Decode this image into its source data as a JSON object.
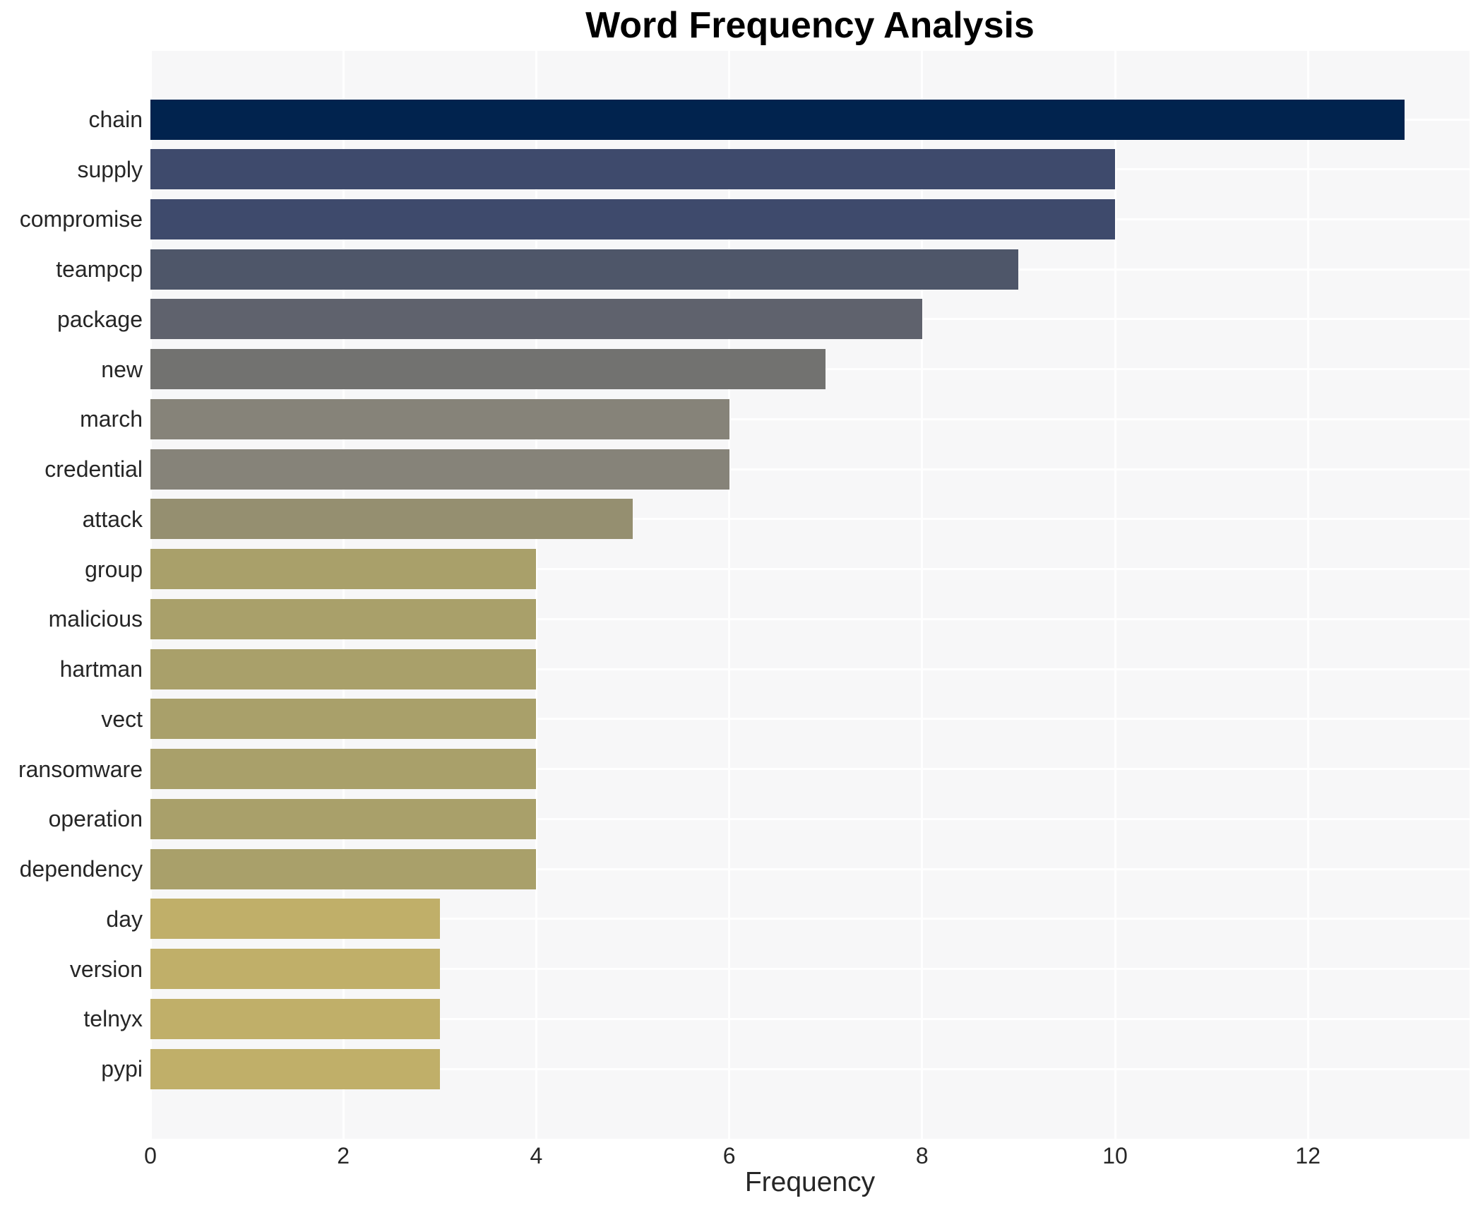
{
  "chart_data": {
    "type": "bar",
    "orientation": "horizontal",
    "title": "Word Frequency Analysis",
    "xlabel": "Frequency",
    "ylabel": "",
    "categories": [
      "chain",
      "supply",
      "compromise",
      "teampcp",
      "package",
      "new",
      "march",
      "credential",
      "attack",
      "group",
      "malicious",
      "hartman",
      "vect",
      "ransomware",
      "operation",
      "dependency",
      "day",
      "version",
      "telnyx",
      "pypi"
    ],
    "values": [
      13,
      10,
      10,
      9,
      8,
      7,
      6,
      6,
      5,
      4,
      4,
      4,
      4,
      4,
      4,
      4,
      3,
      3,
      3,
      3
    ],
    "bar_colors": [
      "#01234e",
      "#3e4a6c",
      "#3e4a6c",
      "#4e5669",
      "#5f626d",
      "#727270",
      "#868379",
      "#868379",
      "#958f70",
      "#a9a06a",
      "#a9a06a",
      "#a9a06a",
      "#a9a06a",
      "#a9a06a",
      "#a9a06a",
      "#a9a06a",
      "#c0af69",
      "#c0af69",
      "#c0af69",
      "#c0af69"
    ],
    "xticks": [
      0,
      2,
      4,
      6,
      8,
      10,
      12
    ],
    "xlim": [
      0,
      13.67
    ],
    "grid": "on",
    "gridline_color": "#ffffff",
    "plot_background": "#f7f7f8",
    "page_background": "#ffffff",
    "text_color": "#262626",
    "title_color": "#000000",
    "legend_position": "none"
  }
}
